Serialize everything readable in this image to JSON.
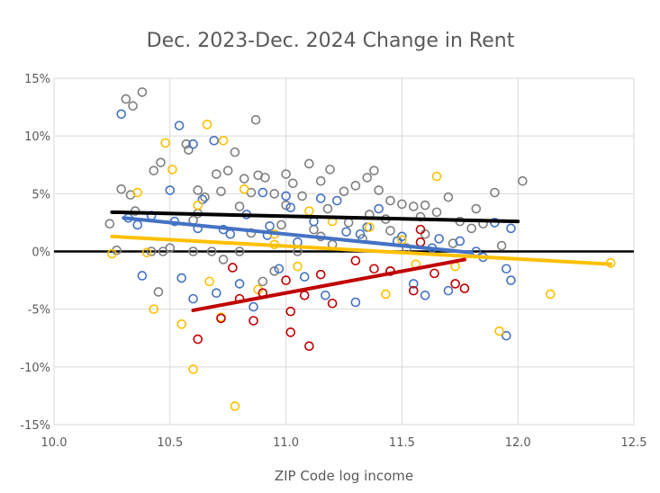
{
  "chart_data": {
    "type": "scatter",
    "title": "Dec. 2023-Dec. 2024 Change in Rent",
    "xlabel": "ZIP Code log income",
    "ylabel": "",
    "xlim": [
      10.0,
      12.5
    ],
    "ylim": [
      -15,
      15
    ],
    "x_ticks": [
      10.0,
      10.5,
      11.0,
      11.5,
      12.0,
      12.5
    ],
    "x_tick_labels": [
      "10.0",
      "10.5",
      "11.0",
      "11.5",
      "12.0",
      "12.5"
    ],
    "y_ticks": [
      -15,
      -10,
      -5,
      0,
      5,
      10,
      15
    ],
    "y_tick_labels": [
      "-15%",
      "-10%",
      "-5%",
      "0%",
      "5%",
      "10%",
      "15%"
    ],
    "grid": true,
    "zero_line": {
      "y": 0,
      "color": "#000000"
    },
    "series": [
      {
        "name": "gray",
        "color": "#7f7f7f",
        "points": [
          [
            10.38,
            13.8
          ],
          [
            10.31,
            13.2
          ],
          [
            10.34,
            12.6
          ],
          [
            10.87,
            11.4
          ],
          [
            10.29,
            5.4
          ],
          [
            10.33,
            4.9
          ],
          [
            10.35,
            3.5
          ],
          [
            10.43,
            7.0
          ],
          [
            10.46,
            7.7
          ],
          [
            10.58,
            8.8
          ],
          [
            10.57,
            9.3
          ],
          [
            10.62,
            5.3
          ],
          [
            10.65,
            4.7
          ],
          [
            10.7,
            6.7
          ],
          [
            10.72,
            5.2
          ],
          [
            10.75,
            7.0
          ],
          [
            10.78,
            8.6
          ],
          [
            10.82,
            6.3
          ],
          [
            10.85,
            5.1
          ],
          [
            10.88,
            6.6
          ],
          [
            10.91,
            6.4
          ],
          [
            10.95,
            5.0
          ],
          [
            11.0,
            6.7
          ],
          [
            11.03,
            5.9
          ],
          [
            11.07,
            4.8
          ],
          [
            11.1,
            7.6
          ],
          [
            11.15,
            6.1
          ],
          [
            11.19,
            7.1
          ],
          [
            11.25,
            5.2
          ],
          [
            11.3,
            5.7
          ],
          [
            11.35,
            6.4
          ],
          [
            11.38,
            7.0
          ],
          [
            11.4,
            5.3
          ],
          [
            11.45,
            4.4
          ],
          [
            11.5,
            4.1
          ],
          [
            11.55,
            3.9
          ],
          [
            11.6,
            4.0
          ],
          [
            11.65,
            3.4
          ],
          [
            11.7,
            4.7
          ],
          [
            11.75,
            2.6
          ],
          [
            11.82,
            3.7
          ],
          [
            11.9,
            5.1
          ],
          [
            12.02,
            6.1
          ],
          [
            10.24,
            2.4
          ],
          [
            10.27,
            0.1
          ],
          [
            10.42,
            0.0
          ],
          [
            10.47,
            0.0
          ],
          [
            10.5,
            0.3
          ],
          [
            10.6,
            0.0
          ],
          [
            10.68,
            0.0
          ],
          [
            10.73,
            -0.7
          ],
          [
            10.8,
            0.0
          ],
          [
            10.9,
            -2.6
          ],
          [
            10.95,
            -1.7
          ],
          [
            11.05,
            0.0
          ],
          [
            11.12,
            1.9
          ],
          [
            11.2,
            0.6
          ],
          [
            11.27,
            2.5
          ],
          [
            11.33,
            1.1
          ],
          [
            11.43,
            2.8
          ],
          [
            11.52,
            0.3
          ],
          [
            11.6,
            1.5
          ],
          [
            11.72,
            0.7
          ],
          [
            11.8,
            2.0
          ],
          [
            11.93,
            0.5
          ],
          [
            10.45,
            -3.5
          ],
          [
            10.62,
            3.3
          ],
          [
            10.8,
            3.9
          ],
          [
            11.0,
            4.0
          ],
          [
            11.18,
            3.7
          ],
          [
            11.36,
            3.2
          ],
          [
            11.58,
            3.0
          ],
          [
            11.85,
            2.4
          ],
          [
            10.6,
            2.7
          ],
          [
            10.85,
            1.6
          ],
          [
            10.98,
            2.3
          ],
          [
            11.15,
            1.3
          ],
          [
            11.45,
            1.8
          ]
        ]
      },
      {
        "name": "blue",
        "color": "#4472c4",
        "points": [
          [
            10.29,
            11.9
          ],
          [
            10.54,
            10.9
          ],
          [
            10.6,
            9.3
          ],
          [
            10.69,
            9.6
          ],
          [
            10.32,
            2.9
          ],
          [
            10.36,
            2.3
          ],
          [
            10.38,
            -2.1
          ],
          [
            10.5,
            5.3
          ],
          [
            10.55,
            -2.3
          ],
          [
            10.6,
            -4.1
          ],
          [
            10.64,
            4.5
          ],
          [
            10.7,
            -3.6
          ],
          [
            10.73,
            1.9
          ],
          [
            10.8,
            -2.8
          ],
          [
            10.83,
            3.2
          ],
          [
            10.86,
            -4.8
          ],
          [
            10.9,
            5.1
          ],
          [
            10.93,
            2.2
          ],
          [
            10.97,
            -1.5
          ],
          [
            11.02,
            3.8
          ],
          [
            11.05,
            0.8
          ],
          [
            11.08,
            -2.2
          ],
          [
            11.12,
            2.6
          ],
          [
            11.17,
            -3.8
          ],
          [
            11.22,
            4.4
          ],
          [
            11.26,
            1.7
          ],
          [
            11.3,
            -4.4
          ],
          [
            11.35,
            2.1
          ],
          [
            11.4,
            3.7
          ],
          [
            11.45,
            -1.7
          ],
          [
            11.5,
            1.3
          ],
          [
            11.55,
            -2.8
          ],
          [
            11.6,
            -3.8
          ],
          [
            11.66,
            1.1
          ],
          [
            11.7,
            -3.4
          ],
          [
            11.75,
            0.9
          ],
          [
            11.82,
            0.0
          ],
          [
            11.9,
            2.5
          ],
          [
            11.95,
            -1.5
          ],
          [
            11.97,
            -2.5
          ],
          [
            11.95,
            -7.3
          ],
          [
            11.97,
            2.0
          ],
          [
            10.42,
            3.1
          ],
          [
            10.52,
            2.6
          ],
          [
            10.62,
            2.0
          ],
          [
            10.76,
            1.5
          ],
          [
            10.92,
            1.4
          ],
          [
            11.0,
            4.8
          ],
          [
            11.15,
            4.6
          ],
          [
            11.32,
            1.5
          ],
          [
            11.48,
            0.9
          ],
          [
            11.63,
            0.3
          ],
          [
            11.85,
            -0.5
          ]
        ]
      },
      {
        "name": "yellow",
        "color": "#ffc000",
        "points": [
          [
            10.48,
            9.4
          ],
          [
            10.51,
            7.1
          ],
          [
            10.66,
            11.0
          ],
          [
            10.73,
            9.6
          ],
          [
            10.36,
            5.1
          ],
          [
            10.25,
            -0.2
          ],
          [
            10.4,
            -0.1
          ],
          [
            10.43,
            -5.0
          ],
          [
            10.55,
            -6.3
          ],
          [
            10.6,
            -10.2
          ],
          [
            10.67,
            -2.6
          ],
          [
            10.72,
            -5.7
          ],
          [
            10.78,
            -13.4
          ],
          [
            10.82,
            5.4
          ],
          [
            10.88,
            -3.3
          ],
          [
            10.95,
            0.6
          ],
          [
            11.05,
            -1.3
          ],
          [
            11.2,
            2.6
          ],
          [
            11.36,
            2.1
          ],
          [
            11.43,
            -3.7
          ],
          [
            11.56,
            -1.1
          ],
          [
            11.65,
            6.5
          ],
          [
            11.73,
            -1.3
          ],
          [
            11.92,
            -6.9
          ],
          [
            12.14,
            -3.7
          ],
          [
            12.4,
            -1.0
          ],
          [
            10.95,
            1.5
          ],
          [
            11.5,
            1.0
          ],
          [
            10.62,
            4.0
          ],
          [
            11.1,
            3.5
          ]
        ]
      },
      {
        "name": "red",
        "color": "#c00000",
        "points": [
          [
            10.62,
            -7.6
          ],
          [
            10.72,
            -5.8
          ],
          [
            10.77,
            -1.4
          ],
          [
            10.8,
            -4.1
          ],
          [
            10.86,
            -6.0
          ],
          [
            10.9,
            -3.6
          ],
          [
            11.0,
            -2.5
          ],
          [
            11.02,
            -5.2
          ],
          [
            11.02,
            -7.0
          ],
          [
            11.08,
            -3.8
          ],
          [
            11.1,
            -8.2
          ],
          [
            11.15,
            -2.0
          ],
          [
            11.2,
            -4.5
          ],
          [
            11.3,
            -0.8
          ],
          [
            11.38,
            -1.5
          ],
          [
            11.45,
            -1.7
          ],
          [
            11.55,
            -3.4
          ],
          [
            11.58,
            1.9
          ],
          [
            11.58,
            0.8
          ],
          [
            11.64,
            -1.9
          ],
          [
            11.73,
            -2.8
          ],
          [
            11.77,
            -3.2
          ]
        ]
      }
    ],
    "trendlines": [
      {
        "name": "gray-trend",
        "color": "#000000",
        "x": [
          10.25,
          12.0
        ],
        "y": [
          3.4,
          2.6
        ]
      },
      {
        "name": "blue-trend",
        "color": "#4472c4",
        "x": [
          10.3,
          11.8
        ],
        "y": [
          2.9,
          -0.1
        ]
      },
      {
        "name": "yellow-trend",
        "color": "#ffc000",
        "x": [
          10.25,
          12.4
        ],
        "y": [
          1.3,
          -1.1
        ]
      },
      {
        "name": "red-trend",
        "color": "#c00000",
        "x": [
          10.6,
          11.77
        ],
        "y": [
          -5.1,
          -0.7
        ]
      }
    ]
  }
}
